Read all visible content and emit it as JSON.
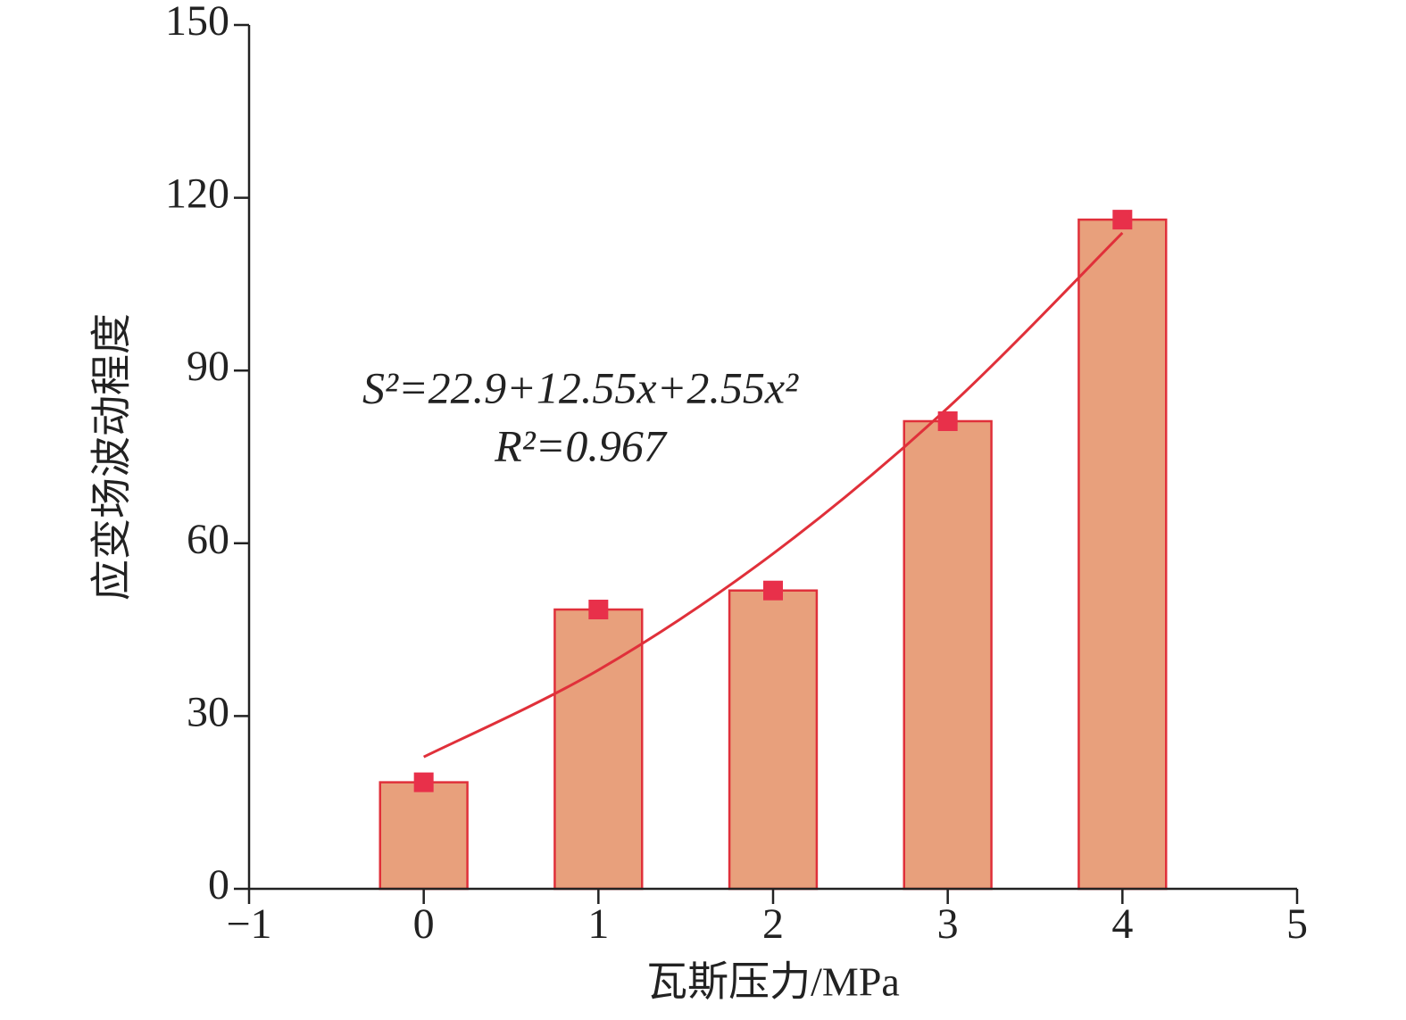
{
  "chart_data": {
    "type": "bar",
    "x_label": "瓦斯压力/MPa",
    "y_label": "应变场波动程度",
    "x": [
      0,
      1,
      2,
      3,
      4
    ],
    "values": [
      18.5,
      48.5,
      51.8,
      81.2,
      116.2
    ],
    "bar_color": "#e8a07c",
    "bar_edge_color": "#e0303a",
    "marker_color": "#e8304a",
    "fit": {
      "x": [
        0,
        1,
        2,
        3,
        4
      ],
      "values": [
        22.9,
        38.0,
        58.2,
        83.5,
        113.9
      ],
      "color": "#e0303a"
    },
    "annotations": [
      "S²=22.9+12.55x+2.55x²",
      "R²=0.967"
    ],
    "xlim": [
      -1,
      5
    ],
    "xticks": [
      {
        "value": -1,
        "label": "−1"
      },
      0,
      1,
      2,
      3,
      4,
      5
    ],
    "ylim": [
      0,
      150
    ],
    "yticks": [
      0,
      30,
      60,
      90,
      120,
      150
    ]
  }
}
